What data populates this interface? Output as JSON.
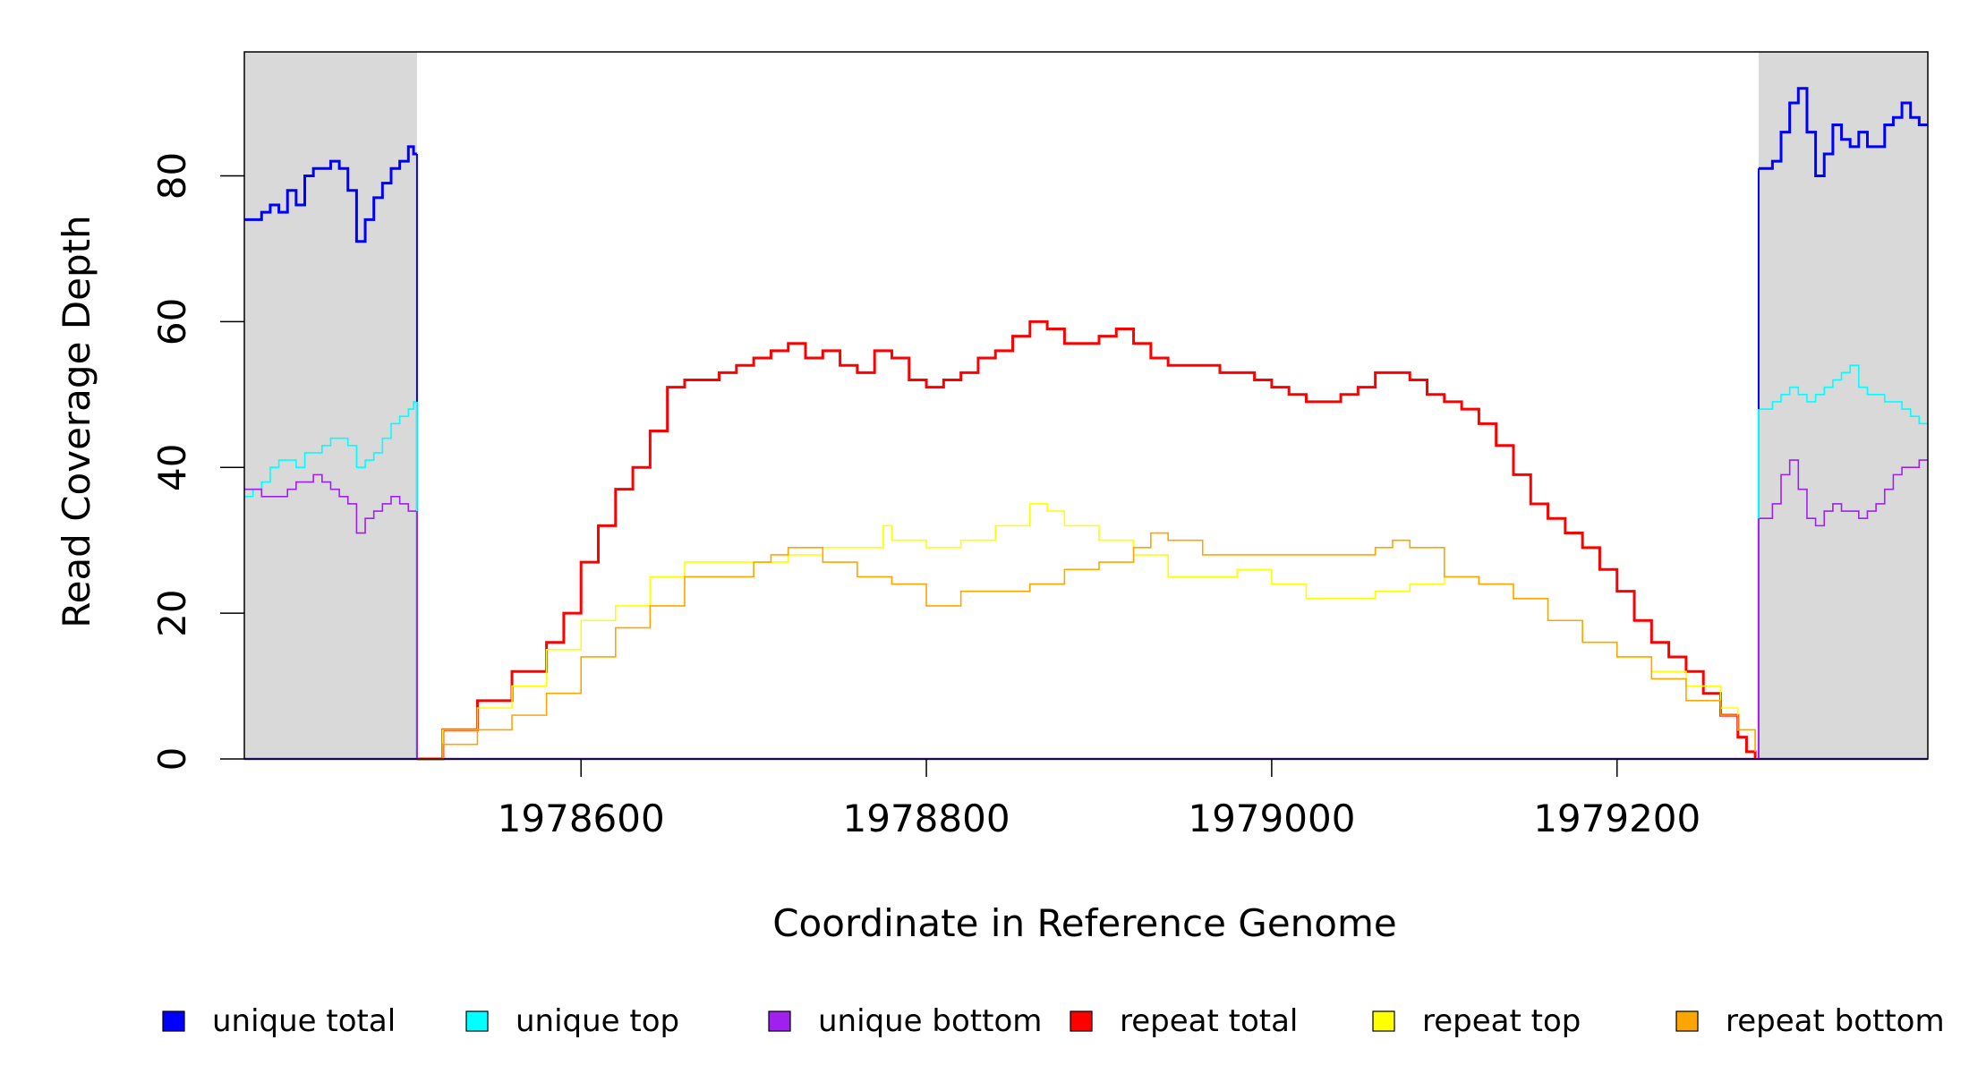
{
  "chart_data": {
    "type": "line",
    "xlabel": "Coordinate in Reference Genome",
    "ylabel": "Read Coverage Depth",
    "xlim": [
      1978405,
      1979380
    ],
    "ylim": [
      0,
      97
    ],
    "x_ticks": [
      1978600,
      1978800,
      1979000,
      1979200
    ],
    "y_ticks": [
      0,
      20,
      40,
      60,
      80
    ],
    "grid": false,
    "legend_position": "bottom",
    "shaded_regions": [
      {
        "x": [
          1978405,
          1978505
        ],
        "color": "#d9d9d9"
      },
      {
        "x": [
          1979282,
          1979380
        ],
        "color": "#d9d9d9"
      }
    ],
    "series": [
      {
        "name": "unique total",
        "color": "#0000ff",
        "segments": [
          {
            "x": [
              1978405,
              1978410,
              1978415,
              1978420,
              1978425,
              1978430,
              1978435,
              1978440,
              1978445,
              1978450,
              1978455,
              1978460,
              1978465,
              1978470,
              1978475,
              1978480,
              1978485,
              1978490,
              1978495,
              1978500,
              1978503,
              1978505
            ],
            "y": [
              74,
              74,
              75,
              76,
              75,
              78,
              76,
              80,
              81,
              81,
              82,
              81,
              78,
              71,
              74,
              77,
              79,
              81,
              82,
              84,
              83,
              83
            ]
          },
          {
            "x": [
              1979282,
              1979290,
              1979295,
              1979300,
              1979305,
              1979310,
              1979315,
              1979320,
              1979325,
              1979330,
              1979335,
              1979340,
              1979345,
              1979350,
              1979355,
              1979360,
              1979365,
              1979370,
              1979375,
              1979380
            ],
            "y": [
              81,
              82,
              86,
              90,
              92,
              86,
              80,
              83,
              87,
              85,
              84,
              86,
              84,
              84,
              87,
              88,
              90,
              88,
              87,
              87
            ]
          }
        ]
      },
      {
        "name": "unique top",
        "color": "#00ffff",
        "segments": [
          {
            "x": [
              1978405,
              1978410,
              1978415,
              1978420,
              1978425,
              1978430,
              1978435,
              1978440,
              1978445,
              1978450,
              1978455,
              1978460,
              1978465,
              1978470,
              1978475,
              1978480,
              1978485,
              1978490,
              1978495,
              1978500,
              1978503,
              1978505
            ],
            "y": [
              36,
              37,
              38,
              40,
              41,
              41,
              40,
              42,
              42,
              43,
              44,
              44,
              43,
              40,
              41,
              42,
              44,
              46,
              47,
              48,
              49,
              49
            ]
          },
          {
            "x": [
              1979282,
              1979290,
              1979295,
              1979300,
              1979305,
              1979310,
              1979315,
              1979320,
              1979325,
              1979330,
              1979335,
              1979340,
              1979345,
              1979350,
              1979355,
              1979360,
              1979365,
              1979370,
              1979375,
              1979380
            ],
            "y": [
              48,
              49,
              50,
              51,
              50,
              49,
              50,
              51,
              52,
              53,
              54,
              51,
              50,
              50,
              49,
              49,
              48,
              47,
              46,
              46
            ]
          }
        ]
      },
      {
        "name": "unique bottom",
        "color": "#a020f0",
        "segments": [
          {
            "x": [
              1978405,
              1978410,
              1978415,
              1978420,
              1978425,
              1978430,
              1978435,
              1978440,
              1978445,
              1978450,
              1978455,
              1978460,
              1978465,
              1978470,
              1978475,
              1978480,
              1978485,
              1978490,
              1978495,
              1978500,
              1978503,
              1978505
            ],
            "y": [
              37,
              37,
              36,
              36,
              36,
              37,
              38,
              38,
              39,
              38,
              37,
              36,
              35,
              31,
              33,
              34,
              35,
              36,
              35,
              34,
              34,
              34
            ]
          },
          {
            "x": [
              1979282,
              1979290,
              1979295,
              1979300,
              1979305,
              1979310,
              1979315,
              1979320,
              1979325,
              1979330,
              1979335,
              1979340,
              1979345,
              1979350,
              1979355,
              1979360,
              1979365,
              1979370,
              1979375,
              1979380
            ],
            "y": [
              33,
              35,
              39,
              41,
              37,
              33,
              32,
              34,
              35,
              34,
              34,
              33,
              34,
              35,
              37,
              39,
              40,
              40,
              41,
              41
            ]
          }
        ]
      },
      {
        "name": "repeat total",
        "color": "#ff0000",
        "segments": [
          {
            "x": [
              1978505,
              1978520,
              1978540,
              1978560,
              1978580,
              1978590,
              1978600,
              1978610,
              1978620,
              1978630,
              1978640,
              1978650,
              1978660,
              1978670,
              1978680,
              1978690,
              1978700,
              1978710,
              1978720,
              1978730,
              1978740,
              1978750,
              1978760,
              1978770,
              1978780,
              1978790,
              1978800,
              1978810,
              1978820,
              1978830,
              1978840,
              1978850,
              1978860,
              1978870,
              1978880,
              1978890,
              1978900,
              1978910,
              1978920,
              1978930,
              1978940,
              1978950,
              1978960,
              1978970,
              1978980,
              1978990,
              1979000,
              1979010,
              1979020,
              1979030,
              1979040,
              1979050,
              1979060,
              1979070,
              1979080,
              1979090,
              1979100,
              1979110,
              1979120,
              1979130,
              1979140,
              1979150,
              1979160,
              1979170,
              1979180,
              1979190,
              1979200,
              1979210,
              1979220,
              1979230,
              1979240,
              1979250,
              1979260,
              1979270,
              1979275,
              1979280
            ],
            "y": [
              0,
              4,
              8,
              12,
              16,
              20,
              27,
              32,
              37,
              40,
              45,
              51,
              52,
              52,
              53,
              54,
              55,
              56,
              57,
              55,
              56,
              54,
              53,
              56,
              55,
              52,
              51,
              52,
              53,
              55,
              56,
              58,
              60,
              59,
              57,
              57,
              58,
              59,
              57,
              55,
              54,
              54,
              54,
              53,
              53,
              52,
              51,
              50,
              49,
              49,
              50,
              51,
              53,
              53,
              52,
              50,
              49,
              48,
              46,
              43,
              39,
              35,
              33,
              31,
              29,
              26,
              23,
              19,
              16,
              14,
              12,
              9,
              6,
              3,
              1,
              0
            ]
          }
        ]
      },
      {
        "name": "repeat top",
        "color": "#ffff00",
        "segments": [
          {
            "x": [
              1978505,
              1978520,
              1978540,
              1978560,
              1978580,
              1978600,
              1978620,
              1978640,
              1978660,
              1978680,
              1978700,
              1978720,
              1978740,
              1978760,
              1978775,
              1978780,
              1978800,
              1978820,
              1978840,
              1978860,
              1978870,
              1978880,
              1978900,
              1978920,
              1978940,
              1978960,
              1978980,
              1979000,
              1979020,
              1979040,
              1979060,
              1979080,
              1979100,
              1979120,
              1979140,
              1979160,
              1979180,
              1979200,
              1979220,
              1979240,
              1979260,
              1979270,
              1979280
            ],
            "y": [
              0,
              4,
              7,
              10,
              15,
              19,
              21,
              25,
              27,
              27,
              27,
              28,
              29,
              29,
              32,
              30,
              29,
              30,
              32,
              35,
              34,
              32,
              30,
              28,
              25,
              25,
              26,
              24,
              22,
              22,
              23,
              24,
              25,
              24,
              22,
              19,
              16,
              14,
              12,
              10,
              7,
              4,
              1
            ]
          }
        ]
      },
      {
        "name": "repeat bottom",
        "color": "#ffa500",
        "segments": [
          {
            "x": [
              1978505,
              1978520,
              1978540,
              1978560,
              1978580,
              1978600,
              1978620,
              1978640,
              1978660,
              1978680,
              1978700,
              1978710,
              1978720,
              1978740,
              1978760,
              1978780,
              1978800,
              1978820,
              1978840,
              1978860,
              1978880,
              1978900,
              1978920,
              1978930,
              1978940,
              1978960,
              1978980,
              1979000,
              1979020,
              1979040,
              1979060,
              1979070,
              1979080,
              1979100,
              1979120,
              1979140,
              1979160,
              1979180,
              1979200,
              1979220,
              1979240,
              1979260,
              1979270,
              1979280
            ],
            "y": [
              0,
              2,
              4,
              6,
              9,
              14,
              18,
              21,
              25,
              25,
              27,
              28,
              29,
              27,
              25,
              24,
              21,
              23,
              23,
              24,
              26,
              27,
              29,
              31,
              30,
              28,
              28,
              28,
              28,
              28,
              29,
              30,
              29,
              25,
              24,
              22,
              19,
              16,
              14,
              11,
              8,
              6,
              4,
              1
            ]
          }
        ]
      }
    ]
  }
}
